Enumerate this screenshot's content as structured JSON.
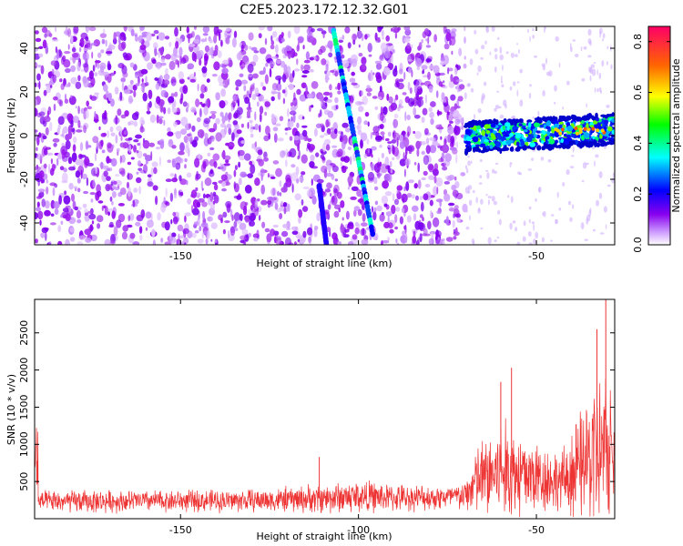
{
  "title": "C2E5.2023.172.12.32.G01",
  "chart_data": [
    {
      "type": "heatmap",
      "xlabel": "Height of straight line (km)",
      "ylabel": "Frequency (Hz)",
      "xlim": [
        -191,
        -28
      ],
      "ylim": [
        -50,
        50
      ],
      "xticks": [
        -150,
        -100,
        -50
      ],
      "yticks": [
        -40,
        -20,
        0,
        20,
        40
      ],
      "colorbar": {
        "label": "Normalized spectral amplitude",
        "range": [
          0,
          0.86
        ],
        "ticks": [
          "0.0",
          "0.2",
          "0.4",
          "0.6",
          "0.8"
        ],
        "colors": [
          "#ffffff",
          "#cc99ff",
          "#8800ee",
          "#0000ff",
          "#00ffff",
          "#00ff00",
          "#ffff00",
          "#ff6600",
          "#ff0066"
        ]
      },
      "features": [
        {
          "kind": "diagonal-track",
          "from": [
            -107,
            48
          ],
          "to": [
            -96,
            -45
          ]
        },
        {
          "kind": "diagonal-track",
          "from": [
            -111,
            -23
          ],
          "to": [
            -109,
            -50
          ]
        },
        {
          "kind": "horizontal-band",
          "x": [
            -70,
            -28
          ],
          "y_center_start": -1,
          "y_center_end": 3
        }
      ],
      "grid": false
    },
    {
      "type": "line",
      "xlabel": "Height of straight line (km)",
      "ylabel": "SNR (10 * v/v)",
      "xlim": [
        -191,
        -28
      ],
      "ylim": [
        0,
        2950
      ],
      "xticks": [
        -150,
        -100,
        -50
      ],
      "yticks": [
        500,
        1000,
        1500,
        2000,
        2500
      ],
      "color": "#ee3333",
      "envelope": [
        {
          "x": -190,
          "base": 230,
          "spread": 230
        },
        {
          "x": -180,
          "base": 230,
          "spread": 260
        },
        {
          "x": -160,
          "base": 240,
          "spread": 240
        },
        {
          "x": -140,
          "base": 240,
          "spread": 250
        },
        {
          "x": -125,
          "base": 250,
          "spread": 260
        },
        {
          "x": -112,
          "base": 270,
          "spread": 330
        },
        {
          "x": -100,
          "base": 300,
          "spread": 380
        },
        {
          "x": -90,
          "base": 280,
          "spread": 300
        },
        {
          "x": -75,
          "base": 290,
          "spread": 280
        },
        {
          "x": -70,
          "base": 300,
          "spread": 330
        },
        {
          "x": -67,
          "base": 500,
          "spread": 800
        },
        {
          "x": -60,
          "base": 650,
          "spread": 1200
        },
        {
          "x": -55,
          "base": 600,
          "spread": 1050
        },
        {
          "x": -48,
          "base": 550,
          "spread": 800
        },
        {
          "x": -43,
          "base": 500,
          "spread": 650
        },
        {
          "x": -40,
          "base": 600,
          "spread": 1000
        },
        {
          "x": -35,
          "base": 800,
          "spread": 1500
        },
        {
          "x": -31,
          "base": 900,
          "spread": 1900
        },
        {
          "x": -28,
          "base": 800,
          "spread": 1400
        }
      ],
      "peaks": [
        {
          "x": -30.5,
          "y": 2950
        },
        {
          "x": -33,
          "y": 2550
        },
        {
          "x": -57,
          "y": 2030
        },
        {
          "x": -60,
          "y": 1840
        },
        {
          "x": -111,
          "y": 830
        }
      ],
      "grid": false
    }
  ]
}
